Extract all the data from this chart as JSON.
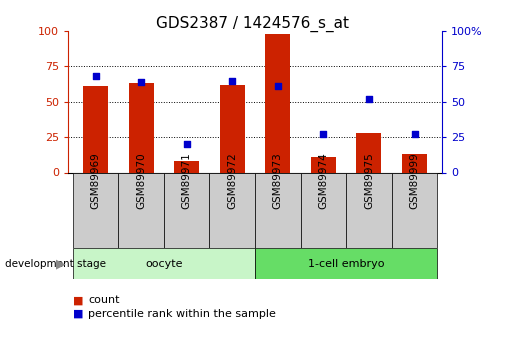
{
  "title": "GDS2387 / 1424576_s_at",
  "samples": [
    "GSM89969",
    "GSM89970",
    "GSM89971",
    "GSM89972",
    "GSM89973",
    "GSM89974",
    "GSM89975",
    "GSM89999"
  ],
  "count_values": [
    61,
    63,
    8,
    62,
    98,
    11,
    28,
    13
  ],
  "percentile_values": [
    68,
    64,
    20,
    65,
    61,
    27,
    52,
    27
  ],
  "groups": [
    {
      "label": "oocyte",
      "indices": [
        0,
        1,
        2,
        3
      ],
      "color": "#c8f5c8"
    },
    {
      "label": "1-cell embryo",
      "indices": [
        4,
        5,
        6,
        7
      ],
      "color": "#66dd66"
    }
  ],
  "bar_color": "#cc2200",
  "dot_color": "#0000cc",
  "ylim": [
    0,
    100
  ],
  "yticks": [
    0,
    25,
    50,
    75,
    100
  ],
  "bar_width": 0.55,
  "title_fontsize": 11,
  "sample_box_color": "#cccccc",
  "dev_stage_label": "development stage"
}
